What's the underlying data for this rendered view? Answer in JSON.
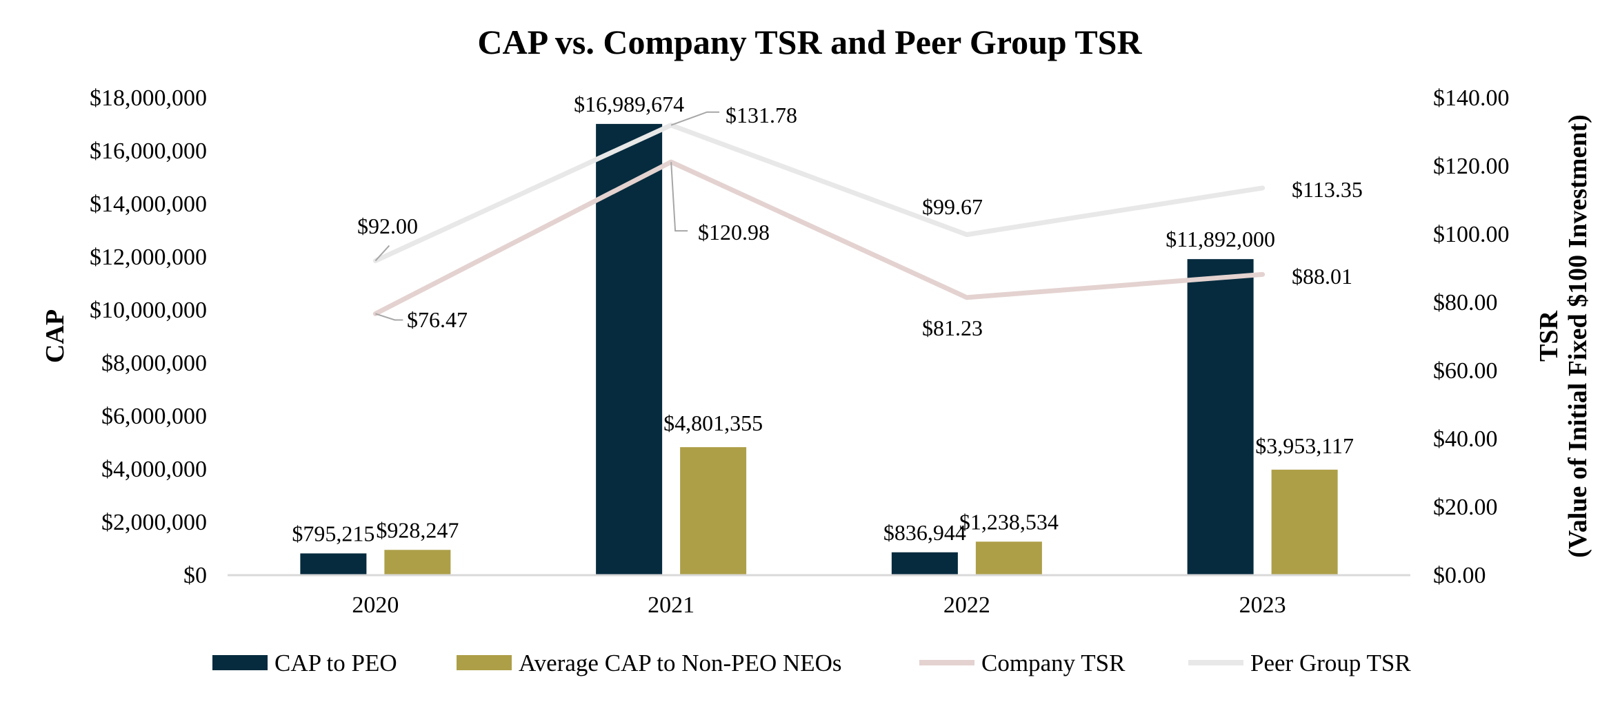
{
  "chart_data": {
    "type": "bar",
    "title": "CAP vs. Company TSR and Peer Group TSR",
    "categories": [
      "2020",
      "2021",
      "2022",
      "2023"
    ],
    "left_axis": {
      "label": "CAP",
      "ylim": [
        0,
        18000000
      ],
      "ticks": [
        0,
        2000000,
        4000000,
        6000000,
        8000000,
        10000000,
        12000000,
        14000000,
        16000000,
        18000000
      ],
      "tick_labels": [
        "$0",
        "$2,000,000",
        "$4,000,000",
        "$6,000,000",
        "$8,000,000",
        "$10,000,000",
        "$12,000,000",
        "$14,000,000",
        "$16,000,000",
        "$18,000,000"
      ]
    },
    "right_axis": {
      "label_line1": "TSR",
      "label_line2": "(Value of Initial Fixed $100 Investment)",
      "ylim": [
        0,
        140
      ],
      "ticks": [
        0,
        20,
        40,
        60,
        80,
        100,
        120,
        140
      ],
      "tick_labels": [
        "$0.00",
        "$20.00",
        "$40.00",
        "$60.00",
        "$80.00",
        "$100.00",
        "$120.00",
        "$140.00"
      ]
    },
    "bar_series": [
      {
        "name": "CAP to PEO",
        "color": "#062b3e",
        "values": [
          795215,
          16989674,
          836944,
          11892000
        ],
        "labels": [
          "$795,215",
          "$16,989,674",
          "$836,944",
          "$11,892,000"
        ]
      },
      {
        "name": "Average CAP to Non-PEO NEOs",
        "color": "#ad9f48",
        "values": [
          928247,
          4801355,
          1238534,
          3953117
        ],
        "labels": [
          "$928,247",
          "$4,801,355",
          "$1,238,534",
          "$3,953,117"
        ]
      }
    ],
    "line_series": [
      {
        "name": "Company TSR",
        "color": "#e3d2d0",
        "values": [
          76.47,
          120.98,
          81.23,
          88.01
        ],
        "labels": [
          "$76.47",
          "$120.98",
          "$81.23",
          "$88.01"
        ]
      },
      {
        "name": "Peer Group TSR",
        "color": "#e8e8e8",
        "values": [
          92.0,
          131.78,
          99.67,
          113.35
        ],
        "labels": [
          "$92.00",
          "$131.78",
          "$99.67",
          "$113.35"
        ]
      }
    ],
    "legend": [
      "CAP to PEO",
      "Average CAP to Non-PEO NEOs",
      "Company TSR",
      "Peer Group TSR"
    ],
    "legend_position": "bottom",
    "grid": false
  }
}
